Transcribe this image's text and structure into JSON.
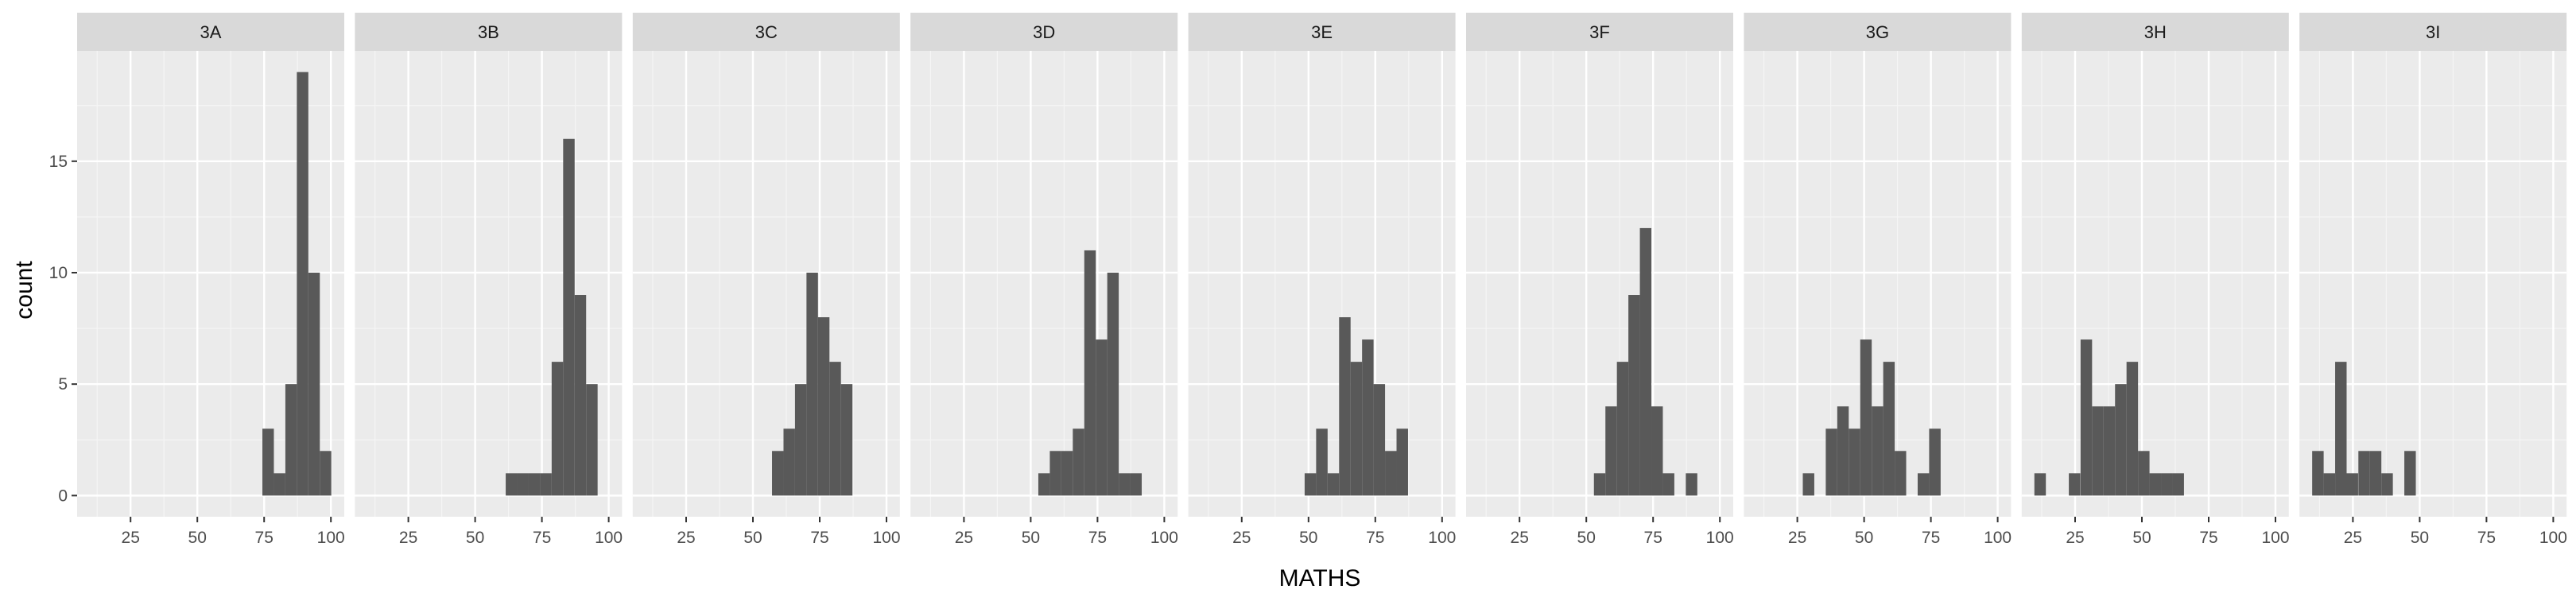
{
  "chart_data": {
    "type": "bar",
    "title": "",
    "xlabel": "MATHS",
    "ylabel": "count",
    "xlim": [
      5,
      105
    ],
    "ylim": [
      -0.95,
      19.95
    ],
    "x_ticks": [
      25,
      50,
      75,
      100
    ],
    "y_ticks": [
      0,
      5,
      10,
      15
    ],
    "bin_width": 4.3,
    "grid": true,
    "colors": {
      "bar": "#595959",
      "panel_bg": "#ebebeb",
      "strip_bg": "#d9d9d9",
      "grid_major": "#ffffff",
      "grid_minor": "#f5f5f5"
    },
    "facets": [
      {
        "label": "3A",
        "bins": [
          [
            76.5,
            3
          ],
          [
            80.8,
            1
          ],
          [
            85.1,
            5
          ],
          [
            89.4,
            19
          ],
          [
            93.7,
            10
          ],
          [
            98.0,
            2
          ]
        ]
      },
      {
        "label": "3B",
        "bins": [
          [
            63.6,
            1
          ],
          [
            67.9,
            1
          ],
          [
            72.2,
            1
          ],
          [
            76.5,
            1
          ],
          [
            80.8,
            6
          ],
          [
            85.1,
            16
          ],
          [
            89.4,
            9
          ],
          [
            93.7,
            5
          ]
        ]
      },
      {
        "label": "3C",
        "bins": [
          [
            59.3,
            2
          ],
          [
            63.6,
            3
          ],
          [
            67.9,
            5
          ],
          [
            72.2,
            10
          ],
          [
            76.5,
            8
          ],
          [
            80.8,
            6
          ],
          [
            85.1,
            5
          ]
        ]
      },
      {
        "label": "3D",
        "bins": [
          [
            55.0,
            1
          ],
          [
            59.3,
            2
          ],
          [
            63.6,
            2
          ],
          [
            67.9,
            3
          ],
          [
            72.2,
            11
          ],
          [
            76.5,
            7
          ],
          [
            80.8,
            10
          ],
          [
            85.1,
            1
          ],
          [
            89.4,
            1
          ]
        ]
      },
      {
        "label": "3E",
        "bins": [
          [
            50.7,
            1
          ],
          [
            55.0,
            3
          ],
          [
            59.3,
            1
          ],
          [
            63.6,
            8
          ],
          [
            67.9,
            6
          ],
          [
            72.2,
            7
          ],
          [
            76.5,
            5
          ],
          [
            80.8,
            2
          ],
          [
            85.1,
            3
          ]
        ]
      },
      {
        "label": "3F",
        "bins": [
          [
            55.0,
            1
          ],
          [
            59.3,
            4
          ],
          [
            63.6,
            6
          ],
          [
            67.9,
            9
          ],
          [
            72.2,
            12
          ],
          [
            76.5,
            4
          ],
          [
            80.8,
            1
          ],
          [
            89.4,
            1
          ]
        ]
      },
      {
        "label": "3G",
        "bins": [
          [
            29.2,
            1
          ],
          [
            37.8,
            3
          ],
          [
            42.1,
            4
          ],
          [
            46.4,
            3
          ],
          [
            50.7,
            7
          ],
          [
            55.0,
            4
          ],
          [
            59.3,
            6
          ],
          [
            63.6,
            2
          ],
          [
            72.2,
            1
          ],
          [
            76.5,
            3
          ]
        ]
      },
      {
        "label": "3H",
        "bins": [
          [
            11.9,
            1
          ],
          [
            24.8,
            1
          ],
          [
            29.2,
            7
          ],
          [
            33.5,
            4
          ],
          [
            37.8,
            4
          ],
          [
            42.1,
            5
          ],
          [
            46.4,
            6
          ],
          [
            50.7,
            2
          ],
          [
            55.0,
            1
          ],
          [
            59.3,
            1
          ],
          [
            63.6,
            1
          ]
        ]
      },
      {
        "label": "3I",
        "bins": [
          [
            11.9,
            2
          ],
          [
            16.2,
            1
          ],
          [
            20.5,
            6
          ],
          [
            24.8,
            1
          ],
          [
            29.2,
            2
          ],
          [
            33.5,
            2
          ],
          [
            37.8,
            1
          ],
          [
            46.4,
            2
          ]
        ]
      }
    ]
  }
}
